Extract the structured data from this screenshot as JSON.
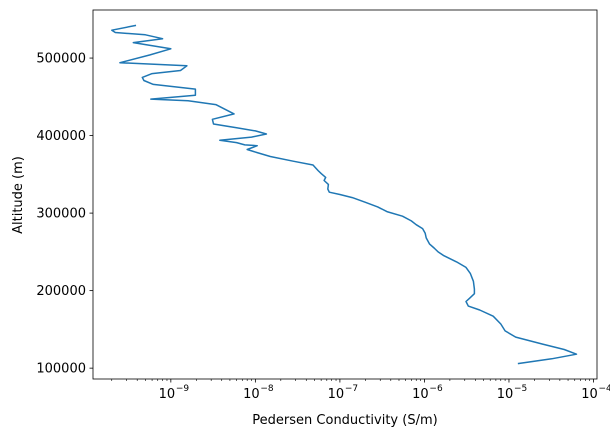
{
  "chart_data": {
    "type": "line",
    "title": "",
    "xlabel": "Pedersen Conductivity (S/m)",
    "ylabel": "Altitude (m)",
    "xscale": "log",
    "xlim": [
      1.2e-10,
      0.00011
    ],
    "ylim": [
      86000,
      562000
    ],
    "grid": false,
    "legend": "none",
    "x_ticks": [
      {
        "value": 1e-09,
        "label": "10",
        "exp": "−9"
      },
      {
        "value": 1e-08,
        "label": "10",
        "exp": "−8"
      },
      {
        "value": 1e-07,
        "label": "10",
        "exp": "−7"
      },
      {
        "value": 1e-06,
        "label": "10",
        "exp": "−6"
      },
      {
        "value": 1e-05,
        "label": "10",
        "exp": "−5"
      },
      {
        "value": 0.0001,
        "label": "10",
        "exp": "−4"
      }
    ],
    "y_ticks": [
      {
        "value": 100000,
        "label": "100000"
      },
      {
        "value": 200000,
        "label": "200000"
      },
      {
        "value": 300000,
        "label": "300000"
      },
      {
        "value": 400000,
        "label": "400000"
      },
      {
        "value": 500000,
        "label": "500000"
      }
    ],
    "series": [
      {
        "color": "#1f77b4",
        "points": [
          [
            1.3e-05,
            106000
          ],
          [
            3.2e-05,
            112000
          ],
          [
            6.3e-05,
            118000
          ],
          [
            4.5e-05,
            124000
          ],
          [
            2.5e-05,
            131000
          ],
          [
            1.2e-05,
            140000
          ],
          [
            9e-06,
            148000
          ],
          [
            8e-06,
            157000
          ],
          [
            6.5e-06,
            167000
          ],
          [
            4.5e-06,
            175000
          ],
          [
            3.3e-06,
            180000
          ],
          [
            3.1e-06,
            186000
          ],
          [
            3.4e-06,
            190000
          ],
          [
            3.9e-06,
            196000
          ],
          [
            3.9e-06,
            202000
          ],
          [
            3.8e-06,
            212000
          ],
          [
            3.5e-06,
            222000
          ],
          [
            3.1e-06,
            230000
          ],
          [
            2.4e-06,
            237000
          ],
          [
            1.7e-06,
            245000
          ],
          [
            1.45e-06,
            250000
          ],
          [
            1.3e-06,
            255000
          ],
          [
            1.15e-06,
            260000
          ],
          [
            1.05e-06,
            268000
          ],
          [
            1.02e-06,
            274000
          ],
          [
            9.5e-07,
            280000
          ],
          [
            8e-07,
            285000
          ],
          [
            7e-07,
            290000
          ],
          [
            5.5e-07,
            296000
          ],
          [
            3.6e-07,
            302000
          ],
          [
            2.8e-07,
            308000
          ],
          [
            2e-07,
            314000
          ],
          [
            1.4e-07,
            320000
          ],
          [
            1e-07,
            324000
          ],
          [
            7.5e-08,
            327000
          ],
          [
            7.2e-08,
            331000
          ],
          [
            7.3e-08,
            337000
          ],
          [
            6.5e-08,
            342000
          ],
          [
            6.8e-08,
            346000
          ],
          [
            6e-08,
            351000
          ],
          [
            5.5e-08,
            355000
          ],
          [
            4.8e-08,
            362000
          ],
          [
            2.8e-08,
            367000
          ],
          [
            1.5e-08,
            373000
          ],
          [
            1.05e-08,
            378000
          ],
          [
            8e-09,
            382000
          ],
          [
            1.05e-08,
            387000
          ],
          [
            7.5e-09,
            388000
          ],
          [
            6e-09,
            391000
          ],
          [
            3.8e-09,
            394000
          ],
          [
            9e-09,
            398000
          ],
          [
            1.35e-08,
            402000
          ],
          [
            1e-08,
            406000
          ],
          [
            6e-09,
            410000
          ],
          [
            3.2e-09,
            415000
          ],
          [
            3.1e-09,
            421000
          ],
          [
            5.6e-09,
            428000
          ],
          [
            3.4e-09,
            440000
          ],
          [
            1.6e-09,
            445000
          ],
          [
            5.8e-10,
            447000
          ],
          [
            1.95e-09,
            452000
          ],
          [
            1.95e-09,
            460000
          ],
          [
            6.2e-10,
            466000
          ],
          [
            4.8e-10,
            471000
          ],
          [
            4.6e-10,
            475000
          ],
          [
            6e-10,
            480000
          ],
          [
            1.3e-09,
            484000
          ],
          [
            1.55e-09,
            490000
          ],
          [
            2.5e-10,
            494000
          ],
          [
            5.6e-10,
            504000
          ],
          [
            1e-09,
            512000
          ],
          [
            3.6e-10,
            520000
          ],
          [
            8e-10,
            525000
          ],
          [
            5e-10,
            530000
          ],
          [
            2.2e-10,
            533000
          ],
          [
            2e-10,
            536000
          ],
          [
            3.8e-10,
            542000
          ]
        ]
      }
    ]
  }
}
